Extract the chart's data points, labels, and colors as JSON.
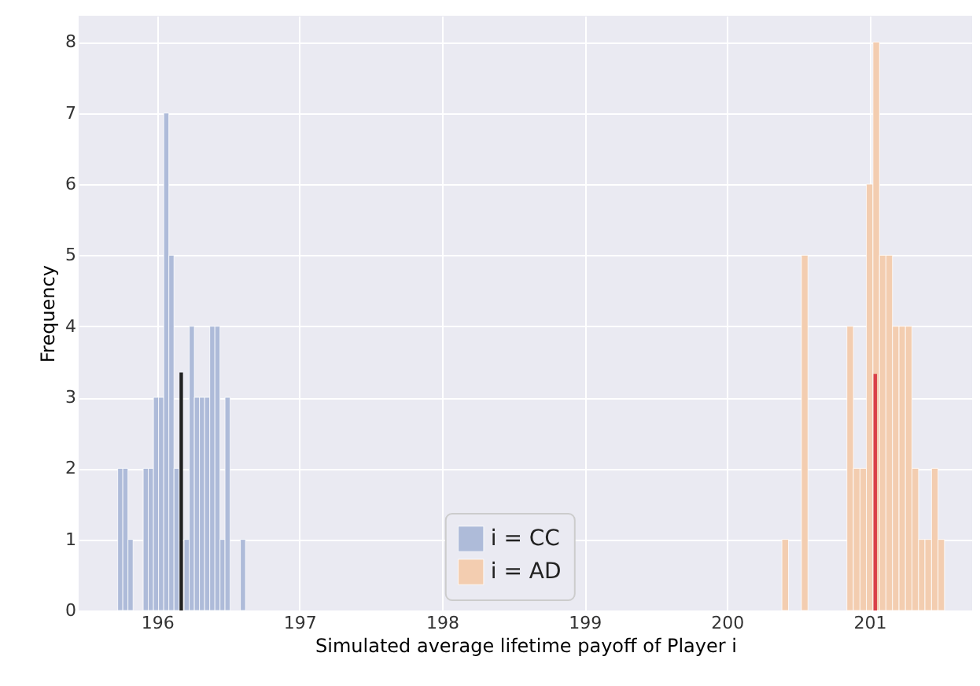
{
  "chart_data": {
    "type": "histogram",
    "xlabel": "Simulated average lifetime payoff of Player i",
    "ylabel": "Frequency",
    "xlim": [
      195.45,
      201.72
    ],
    "xticks": [
      196,
      197,
      198,
      199,
      200,
      201
    ],
    "ylim": [
      0,
      8.37
    ],
    "yticks": [
      0,
      1,
      2,
      3,
      4,
      5,
      6,
      7,
      8
    ],
    "grid": true,
    "legend": "bottom",
    "series": [
      {
        "name": "i = CC",
        "color": "#aebbd9",
        "bins": [
          195.724,
          195.76,
          195.796,
          195.832,
          195.868,
          195.903,
          195.939,
          195.975,
          196.011,
          196.047,
          196.083,
          196.119,
          196.155,
          196.19,
          196.226,
          196.262,
          196.298,
          196.334,
          196.37,
          196.406,
          196.442,
          196.477,
          196.513,
          196.549,
          196.585,
          196.621
        ],
        "values": [
          2,
          2,
          1,
          0,
          0,
          2,
          2,
          3,
          3,
          7,
          5,
          2,
          null,
          1,
          4,
          3,
          3,
          3,
          4,
          4,
          1,
          3,
          0,
          0,
          1
        ]
      },
      {
        "name": "i = AD",
        "color": "#f3cdb0",
        "bins": [
          200.385,
          200.431,
          200.476,
          200.522,
          200.568,
          200.613,
          200.659,
          200.705,
          200.75,
          200.796,
          200.841,
          200.887,
          200.933,
          200.978,
          201.024,
          201.07,
          201.115,
          201.161,
          201.207,
          201.252,
          201.298,
          201.344,
          201.389,
          201.435,
          201.481,
          201.526
        ],
        "values": [
          1,
          0,
          0,
          5,
          0,
          0,
          0,
          0,
          0,
          0,
          4,
          2,
          2,
          6,
          8,
          5,
          5,
          4,
          4,
          4,
          2,
          1,
          1,
          2,
          1
        ]
      },
      {
        "type": "bar",
        "color": "#222222",
        "x": [
          196.17
        ],
        "values": [
          3.35
        ]
      },
      {
        "type": "bar",
        "color": "#d9414a",
        "x": [
          201.04
        ],
        "values": [
          3.33
        ]
      }
    ]
  }
}
